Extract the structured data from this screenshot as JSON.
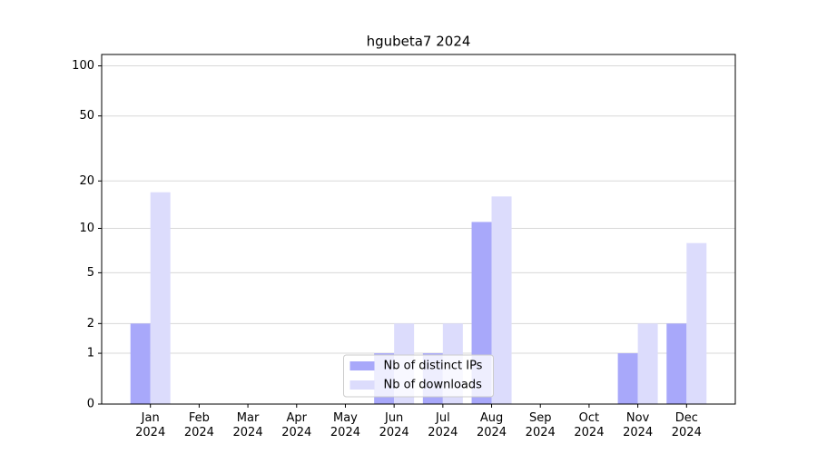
{
  "chart_data": {
    "type": "bar",
    "title": "hgubeta7 2024",
    "categories": [
      "Jan\n2024",
      "Feb\n2024",
      "Mar\n2024",
      "Apr\n2024",
      "May\n2024",
      "Jun\n2024",
      "Jul\n2024",
      "Aug\n2024",
      "Sep\n2024",
      "Oct\n2024",
      "Nov\n2024",
      "Dec\n2024"
    ],
    "series": [
      {
        "name": "Nb of distinct IPs",
        "color": "#a8a8fa",
        "values": [
          2,
          0,
          0,
          0,
          0,
          1,
          1,
          11,
          0,
          0,
          1,
          2
        ]
      },
      {
        "name": "Nb of downloads",
        "color": "#dcdcfc",
        "values": [
          17,
          0,
          0,
          0,
          0,
          2,
          2,
          16,
          0,
          0,
          2,
          8
        ]
      }
    ],
    "yscale": "log1p",
    "ylim": [
      0,
      117
    ],
    "yticks": [
      0,
      1,
      2,
      5,
      10,
      20,
      50,
      100
    ],
    "grid": true,
    "legend": "lower center"
  }
}
